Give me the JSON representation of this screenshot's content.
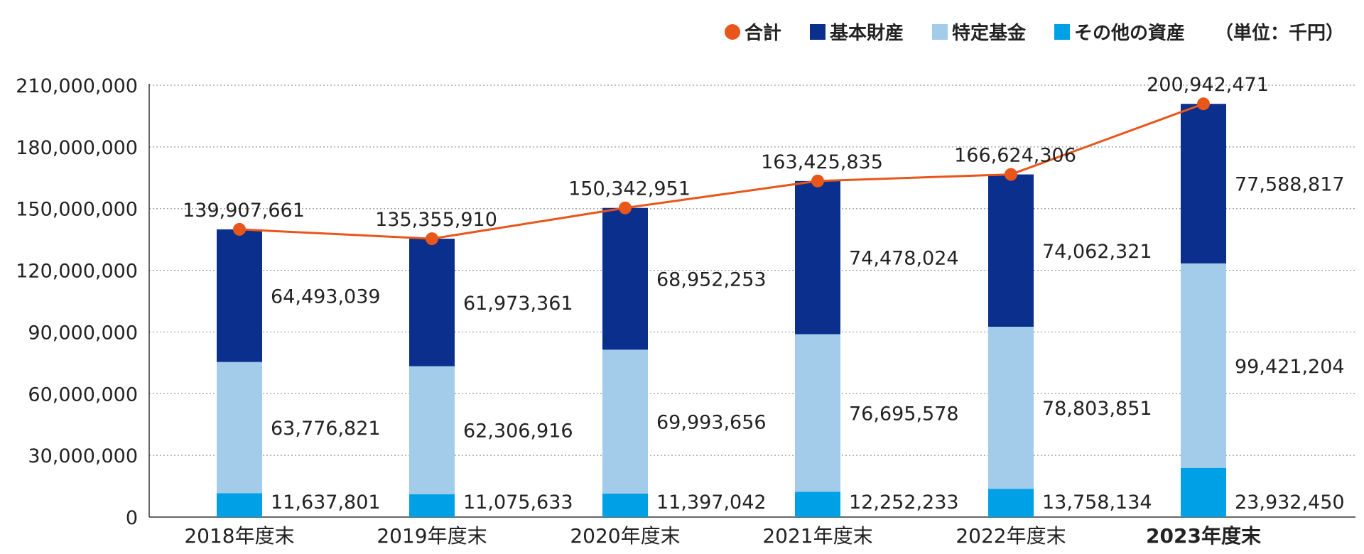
{
  "legend": {
    "total": "合計",
    "basic": "基本財産",
    "special": "特定基金",
    "other": "その他の資産",
    "unit": "（単位：千円）"
  },
  "colors": {
    "total": "#e8561a",
    "basic": "#0a2f8c",
    "special": "#a3cbea",
    "other": "#00a0e6",
    "grid": "#999999",
    "axis": "#333333"
  },
  "chart_data": {
    "type": "bar",
    "stacked": true,
    "categories": [
      "2018年度末",
      "2019年度末",
      "2020年度末",
      "2021年度末",
      "2022年度末",
      "2023年度末"
    ],
    "category_label_labels": [
      "2018年度末",
      "2019年度末",
      "2020年度末",
      "2021年度末",
      "2022年度末",
      "2023年度末"
    ],
    "highlight_category": "2023年度末",
    "series": [
      {
        "name": "その他の資産",
        "key": "other",
        "values": [
          11637801,
          11075633,
          11397042,
          12252233,
          13758134,
          23932450
        ],
        "labels": [
          "11,637,801",
          "11,075,633",
          "11,397,042",
          "12,252,233",
          "13,758,134",
          "23,932,450"
        ]
      },
      {
        "name": "特定基金",
        "key": "special",
        "values": [
          63776821,
          62306916,
          69993656,
          76695578,
          78803851,
          99421204
        ],
        "labels": [
          "63,776,821",
          "62,306,916",
          "69,993,656",
          "76,695,578",
          "78,803,851",
          "99,421,204"
        ]
      },
      {
        "name": "基本財産",
        "key": "basic",
        "values": [
          64493039,
          61973361,
          68952253,
          74478024,
          74062321,
          77588817
        ],
        "labels": [
          "64,493,039",
          "61,973,361",
          "68,952,253",
          "74,478,024",
          "74,062,321",
          "77,588,817"
        ]
      }
    ],
    "total": {
      "name": "合計",
      "type": "line",
      "values": [
        139907661,
        135355910,
        150342951,
        163425835,
        166624306,
        200942471
      ],
      "labels": [
        "139,907,661",
        "135,355,910",
        "150,342,951",
        "163,425,835",
        "166,624,306",
        "200,942,471"
      ]
    },
    "ylim": [
      0,
      210000000
    ],
    "yticks": [
      0,
      30000000,
      60000000,
      90000000,
      120000000,
      150000000,
      180000000,
      210000000
    ],
    "ytick_labels": [
      "0",
      "30,000,000",
      "60,000,000",
      "90,000,000",
      "120,000,000",
      "150,000,000",
      "180,000,000",
      "210,000,000"
    ],
    "grid": "horizontal dotted",
    "legend_position": "top-right"
  }
}
